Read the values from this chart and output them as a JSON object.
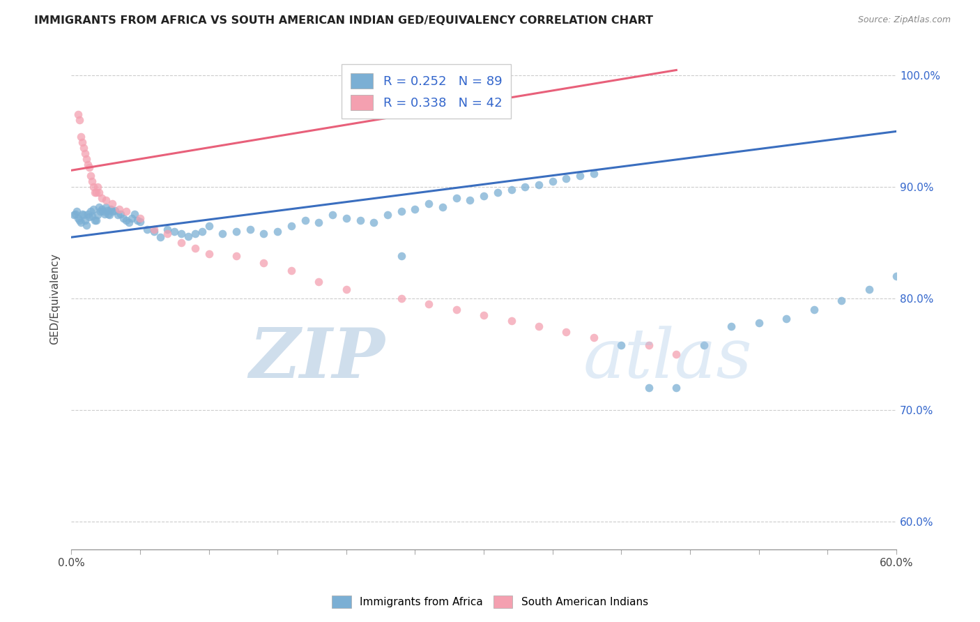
{
  "title": "IMMIGRANTS FROM AFRICA VS SOUTH AMERICAN INDIAN GED/EQUIVALENCY CORRELATION CHART",
  "source": "Source: ZipAtlas.com",
  "ylabel": "GED/Equivalency",
  "ytick_labels": [
    "60.0%",
    "70.0%",
    "80.0%",
    "90.0%",
    "100.0%"
  ],
  "ytick_values": [
    0.6,
    0.7,
    0.8,
    0.9,
    1.0
  ],
  "xlim": [
    0.0,
    0.6
  ],
  "ylim": [
    0.575,
    1.025
  ],
  "blue_R": 0.252,
  "blue_N": 89,
  "pink_R": 0.338,
  "pink_N": 42,
  "blue_color": "#7BAFD4",
  "pink_color": "#F4A0B0",
  "blue_line_color": "#3A6EBF",
  "pink_line_color": "#E8607A",
  "legend_label_blue": "Immigrants from Africa",
  "legend_label_pink": "South American Indians",
  "blue_line_x0": 0.0,
  "blue_line_y0": 0.855,
  "blue_line_x1": 0.6,
  "blue_line_y1": 0.95,
  "pink_line_x0": 0.0,
  "pink_line_x1": 0.44,
  "pink_line_y0": 0.915,
  "pink_line_y1": 1.005,
  "blue_scatter_x": [
    0.002,
    0.003,
    0.004,
    0.005,
    0.006,
    0.007,
    0.008,
    0.009,
    0.01,
    0.011,
    0.012,
    0.013,
    0.014,
    0.015,
    0.016,
    0.017,
    0.018,
    0.019,
    0.02,
    0.021,
    0.022,
    0.023,
    0.024,
    0.025,
    0.026,
    0.027,
    0.028,
    0.029,
    0.03,
    0.032,
    0.034,
    0.036,
    0.038,
    0.04,
    0.042,
    0.044,
    0.046,
    0.048,
    0.05,
    0.055,
    0.06,
    0.065,
    0.07,
    0.075,
    0.08,
    0.085,
    0.09,
    0.095,
    0.1,
    0.11,
    0.12,
    0.13,
    0.14,
    0.15,
    0.16,
    0.17,
    0.18,
    0.19,
    0.2,
    0.21,
    0.22,
    0.23,
    0.24,
    0.25,
    0.26,
    0.27,
    0.28,
    0.29,
    0.3,
    0.31,
    0.32,
    0.33,
    0.34,
    0.35,
    0.36,
    0.37,
    0.38,
    0.4,
    0.42,
    0.44,
    0.46,
    0.48,
    0.5,
    0.52,
    0.54,
    0.56,
    0.58,
    0.6,
    0.24
  ],
  "blue_scatter_y": [
    0.875,
    0.876,
    0.878,
    0.872,
    0.87,
    0.868,
    0.876,
    0.875,
    0.87,
    0.866,
    0.876,
    0.873,
    0.878,
    0.874,
    0.88,
    0.87,
    0.87,
    0.875,
    0.882,
    0.878,
    0.88,
    0.878,
    0.876,
    0.882,
    0.879,
    0.876,
    0.875,
    0.88,
    0.878,
    0.879,
    0.875,
    0.876,
    0.872,
    0.87,
    0.868,
    0.872,
    0.876,
    0.87,
    0.869,
    0.862,
    0.86,
    0.855,
    0.862,
    0.86,
    0.858,
    0.856,
    0.858,
    0.86,
    0.865,
    0.858,
    0.86,
    0.862,
    0.858,
    0.86,
    0.865,
    0.87,
    0.868,
    0.875,
    0.872,
    0.87,
    0.868,
    0.875,
    0.878,
    0.88,
    0.885,
    0.882,
    0.89,
    0.888,
    0.892,
    0.895,
    0.898,
    0.9,
    0.902,
    0.905,
    0.908,
    0.91,
    0.912,
    0.758,
    0.72,
    0.72,
    0.758,
    0.775,
    0.778,
    0.782,
    0.79,
    0.798,
    0.808,
    0.82,
    0.838
  ],
  "pink_scatter_x": [
    0.005,
    0.006,
    0.007,
    0.008,
    0.009,
    0.01,
    0.011,
    0.012,
    0.013,
    0.014,
    0.015,
    0.016,
    0.017,
    0.018,
    0.019,
    0.02,
    0.022,
    0.025,
    0.03,
    0.035,
    0.04,
    0.05,
    0.06,
    0.07,
    0.08,
    0.09,
    0.1,
    0.12,
    0.14,
    0.16,
    0.18,
    0.2,
    0.24,
    0.26,
    0.28,
    0.3,
    0.32,
    0.34,
    0.36,
    0.38,
    0.42,
    0.44
  ],
  "pink_scatter_y": [
    0.965,
    0.96,
    0.945,
    0.94,
    0.935,
    0.93,
    0.925,
    0.92,
    0.918,
    0.91,
    0.905,
    0.9,
    0.895,
    0.895,
    0.9,
    0.895,
    0.89,
    0.888,
    0.885,
    0.88,
    0.878,
    0.872,
    0.862,
    0.858,
    0.85,
    0.845,
    0.84,
    0.838,
    0.832,
    0.825,
    0.815,
    0.808,
    0.8,
    0.795,
    0.79,
    0.785,
    0.78,
    0.775,
    0.77,
    0.765,
    0.758,
    0.75
  ]
}
